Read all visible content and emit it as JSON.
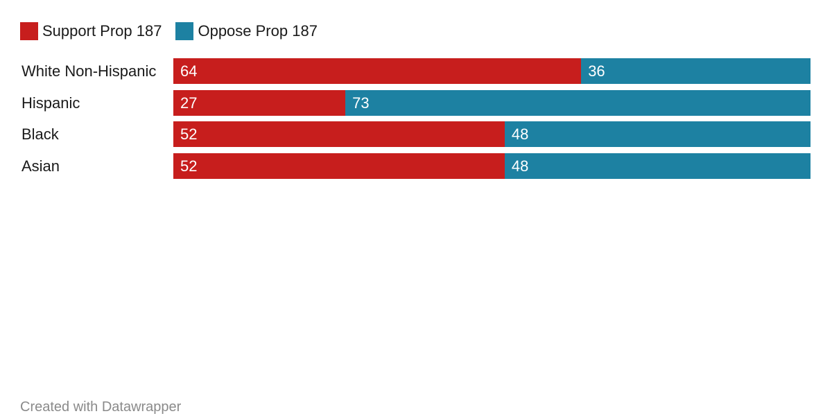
{
  "chart_data": {
    "type": "bar",
    "orientation": "horizontal",
    "stacked": true,
    "categories": [
      "White Non-Hispanic",
      "Hispanic",
      "Black",
      "Asian"
    ],
    "series": [
      {
        "name": "Support Prop 187",
        "color": "#c71e1d",
        "values": [
          64,
          27,
          52,
          52
        ]
      },
      {
        "name": "Oppose Prop 187",
        "color": "#1d81a2",
        "values": [
          36,
          73,
          48,
          48
        ]
      }
    ],
    "xlim": [
      0,
      100
    ],
    "grid": false,
    "legend": "top-left",
    "data_labels": true
  },
  "footer": "Created with Datawrapper"
}
